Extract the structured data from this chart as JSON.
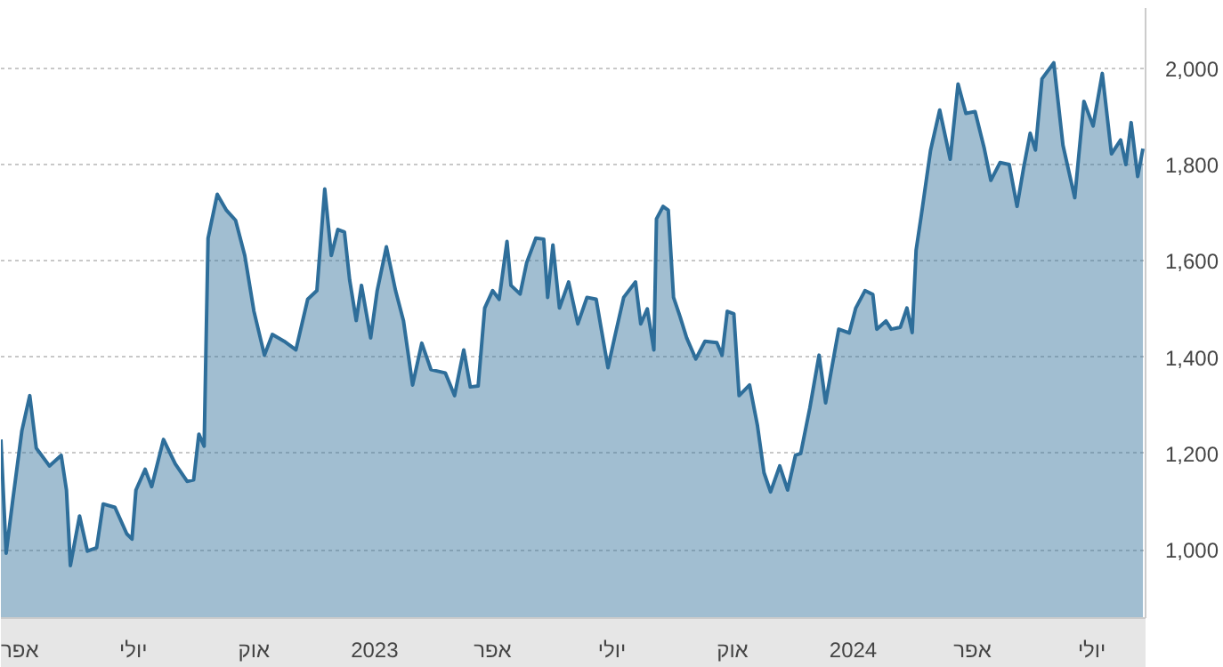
{
  "chart_data": {
    "type": "area",
    "xlim": [
      "2022-03-22",
      "2024-08-11"
    ],
    "ylim": [
      858,
      2125
    ],
    "yticks": [
      {
        "value": 1000,
        "label": "1,000"
      },
      {
        "value": 1200,
        "label": "1,200"
      },
      {
        "value": 1400,
        "label": "1,400"
      },
      {
        "value": 1600,
        "label": "1,600"
      },
      {
        "value": 1800,
        "label": "1,800"
      },
      {
        "value": 2000,
        "label": "2,000"
      }
    ],
    "xticks": [
      {
        "value": "2022-04-01",
        "label": "אפר"
      },
      {
        "value": "2022-07-01",
        "label": "יולי"
      },
      {
        "value": "2022-10-01",
        "label": "אוק"
      },
      {
        "value": "2023-01-01",
        "label": "2023"
      },
      {
        "value": "2023-04-01",
        "label": "אפר"
      },
      {
        "value": "2023-07-01",
        "label": "יולי"
      },
      {
        "value": "2023-10-01",
        "label": "אוק"
      },
      {
        "value": "2024-01-01",
        "label": "2024"
      },
      {
        "value": "2024-04-01",
        "label": "אפר"
      },
      {
        "value": "2024-07-01",
        "label": "יולי"
      }
    ],
    "grid": "y",
    "x": [
      "2022-03-22",
      "2022-03-26",
      "2022-03-31",
      "2022-04-07",
      "2022-04-13",
      "2022-04-18",
      "2022-04-28",
      "2022-05-07",
      "2022-05-11",
      "2022-05-14",
      "2022-05-21",
      "2022-05-27",
      "2022-06-03",
      "2022-06-08",
      "2022-06-17",
      "2022-06-26",
      "2022-06-30",
      "2022-07-03",
      "2022-07-10",
      "2022-07-15",
      "2022-07-24",
      "2022-08-02",
      "2022-08-11",
      "2022-08-16",
      "2022-08-20",
      "2022-08-24",
      "2022-08-27",
      "2022-09-03",
      "2022-09-10",
      "2022-09-17",
      "2022-09-24",
      "2022-10-01",
      "2022-10-09",
      "2022-10-15",
      "2022-10-24",
      "2022-11-02",
      "2022-11-11",
      "2022-11-18",
      "2022-11-24",
      "2022-11-29",
      "2022-12-04",
      "2022-12-09",
      "2022-12-13",
      "2022-12-18",
      "2022-12-22",
      "2022-12-29",
      "2023-01-03",
      "2023-01-10",
      "2023-01-17",
      "2023-01-23",
      "2023-01-30",
      "2023-02-06",
      "2023-02-13",
      "2023-02-24",
      "2023-03-03",
      "2023-03-10",
      "2023-03-15",
      "2023-03-21",
      "2023-03-26",
      "2023-04-01",
      "2023-04-06",
      "2023-04-12",
      "2023-04-15",
      "2023-04-22",
      "2023-04-27",
      "2023-05-04",
      "2023-05-10",
      "2023-05-13",
      "2023-05-17",
      "2023-05-22",
      "2023-05-29",
      "2023-06-05",
      "2023-06-12",
      "2023-06-19",
      "2023-06-28",
      "2023-07-03",
      "2023-07-10",
      "2023-07-19",
      "2023-07-23",
      "2023-07-28",
      "2023-08-02",
      "2023-08-04",
      "2023-08-09",
      "2023-08-13",
      "2023-08-17",
      "2023-08-22",
      "2023-08-27",
      "2023-09-03",
      "2023-09-10",
      "2023-09-19",
      "2023-09-23",
      "2023-09-27",
      "2023-10-02",
      "2023-10-06",
      "2023-10-14",
      "2023-10-20",
      "2023-10-25",
      "2023-10-30",
      "2023-11-06",
      "2023-11-12",
      "2023-11-18",
      "2023-11-22",
      "2023-11-29",
      "2023-12-06",
      "2023-12-11",
      "2023-12-15",
      "2023-12-21",
      "2023-12-29",
      "2024-01-03",
      "2024-01-10",
      "2024-01-16",
      "2024-01-19",
      "2024-01-26",
      "2024-01-30",
      "2024-02-06",
      "2024-02-11",
      "2024-02-15",
      "2024-02-18",
      "2024-02-22",
      "2024-02-29",
      "2024-03-07",
      "2024-03-15",
      "2024-03-21",
      "2024-03-27",
      "2024-04-03",
      "2024-04-10",
      "2024-04-15",
      "2024-04-22",
      "2024-04-29",
      "2024-05-05",
      "2024-05-10",
      "2024-05-15",
      "2024-05-19",
      "2024-05-24",
      "2024-06-02",
      "2024-06-09",
      "2024-06-18",
      "2024-06-25",
      "2024-07-02",
      "2024-07-09",
      "2024-07-16",
      "2024-07-23",
      "2024-07-27",
      "2024-07-31",
      "2024-08-05",
      "2024-08-09"
    ],
    "series": [
      {
        "color": "#2e6e9a",
        "values": [
          1229,
          993,
          1102,
          1247,
          1320,
          1211,
          1174,
          1196,
          1124,
          967,
          1070,
          997,
          1004,
          1095,
          1088,
          1033,
          1022,
          1124,
          1167,
          1131,
          1229,
          1178,
          1142,
          1145,
          1240,
          1215,
          1647,
          1738,
          1705,
          1684,
          1611,
          1495,
          1404,
          1447,
          1433,
          1415,
          1520,
          1538,
          1749,
          1611,
          1665,
          1660,
          1560,
          1476,
          1549,
          1440,
          1538,
          1629,
          1538,
          1476,
          1342,
          1429,
          1374,
          1367,
          1320,
          1415,
          1338,
          1340,
          1502,
          1538,
          1520,
          1640,
          1549,
          1531,
          1596,
          1647,
          1645,
          1524,
          1633,
          1502,
          1556,
          1469,
          1524,
          1520,
          1378,
          1440,
          1524,
          1556,
          1469,
          1500,
          1415,
          1687,
          1713,
          1705,
          1524,
          1484,
          1440,
          1396,
          1433,
          1430,
          1404,
          1495,
          1490,
          1320,
          1342,
          1258,
          1160,
          1120,
          1174,
          1124,
          1196,
          1200,
          1295,
          1404,
          1305,
          1367,
          1458,
          1450,
          1502,
          1538,
          1530,
          1458,
          1475,
          1458,
          1462,
          1502,
          1451,
          1622,
          1695,
          1829,
          1913,
          1811,
          1967,
          1906,
          1910,
          1833,
          1767,
          1804,
          1800,
          1713,
          1793,
          1865,
          1830,
          1978,
          2011,
          1840,
          1731,
          1931,
          1880,
          1989,
          1822,
          1851,
          1800,
          1887,
          1775,
          1833
        ]
      }
    ]
  }
}
